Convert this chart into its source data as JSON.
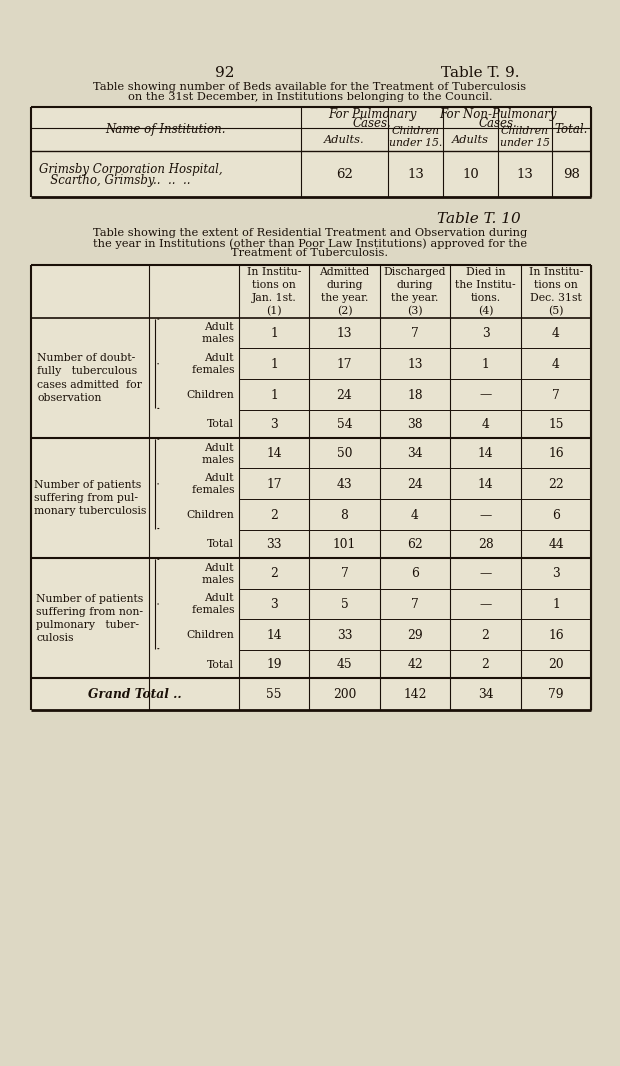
{
  "page_num": "92",
  "table9_title_right": "Table T. 9.",
  "table9_heading_line1": "Table showing number of Beds available for the Treatment of Tuberculosis",
  "table9_heading_line2": "on the 31st December, in Institutions belonging to the Council.",
  "table9_institution_line1": "Grimsby Corporation Hospital,",
  "table9_institution_line2": "   Scartho, Grimsby..  ..  ..",
  "table9_values": [
    62,
    13,
    10,
    13,
    98
  ],
  "table10_title": "Table T. 10",
  "table10_heading_line1": "Table showing the extent of Residential Treatment and Observation during",
  "table10_heading_line2": "the year in Institutions (other than Poor Law Institutions) approved for the",
  "table10_heading_line3": "Treatment of Tuberculosis.",
  "table10_col_headers": [
    "In Institu-\ntions on\nJan. 1st.\n(1)",
    "Admitted\nduring\nthe year.\n(2)",
    "Discharged\nduring\nthe year.\n(3)",
    "Died in\nthe Institu-\ntions.\n(4)",
    "In Institu-\ntions on\nDec. 31st\n(5)"
  ],
  "table10_sections": [
    {
      "label": "Number of doubt-\nfully   tuberculous\ncases admitted  for\nobservation",
      "rows": [
        {
          "sub": "Adult\n      males",
          "vals": [
            1,
            13,
            7,
            3,
            4
          ]
        },
        {
          "sub": "Adult\n      females",
          "vals": [
            1,
            17,
            13,
            1,
            4
          ]
        },
        {
          "sub": "Children",
          "vals": [
            1,
            24,
            18,
            "",
            7
          ]
        },
        {
          "sub": "Total",
          "vals": [
            3,
            54,
            38,
            4,
            15
          ]
        }
      ]
    },
    {
      "label": "Number of patients\nsuffering from pul-\nmonary tuberculosis",
      "rows": [
        {
          "sub": "Adult\n      males",
          "vals": [
            14,
            50,
            34,
            14,
            16
          ]
        },
        {
          "sub": "Adult\n      females",
          "vals": [
            17,
            43,
            24,
            14,
            22
          ]
        },
        {
          "sub": "Children",
          "vals": [
            2,
            8,
            4,
            "",
            6
          ]
        },
        {
          "sub": "Total",
          "vals": [
            33,
            101,
            62,
            28,
            44
          ]
        }
      ]
    },
    {
      "label": "Number of patients\nsuffering from non-\npulmonary   tuber-\nculosis",
      "rows": [
        {
          "sub": "Adult\n      males",
          "vals": [
            2,
            7,
            6,
            "",
            3
          ]
        },
        {
          "sub": "Adult\n      females",
          "vals": [
            3,
            5,
            7,
            "",
            1
          ]
        },
        {
          "sub": "Children",
          "vals": [
            14,
            33,
            29,
            2,
            16
          ]
        },
        {
          "sub": "Total",
          "vals": [
            19,
            45,
            42,
            2,
            20
          ]
        }
      ]
    }
  ],
  "grand_total_label": "Grand Total ..",
  "grand_total_vals": [
    55,
    200,
    142,
    34,
    79
  ],
  "bg_color": "#ddd8c4",
  "table_bg": "#e8e3d0",
  "text_color": "#1a1008",
  "line_color": "#1a1008"
}
